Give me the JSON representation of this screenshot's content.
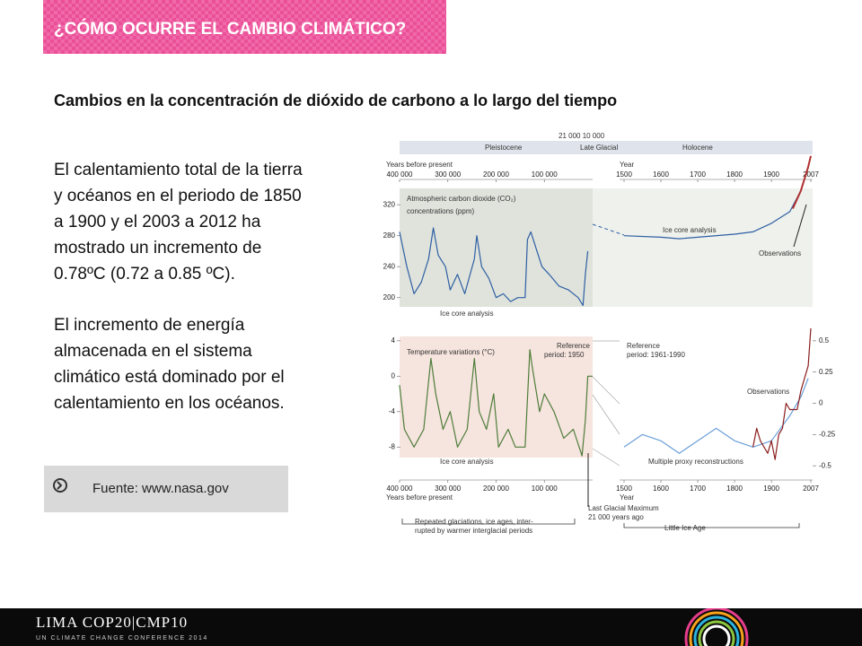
{
  "header": {
    "title": "¿CÓMO OCURRE EL CAMBIO CLIMÁTICO?"
  },
  "subtitle": "Cambios en la concentración de dióxido de carbono a lo largo del tiempo",
  "paragraphs": [
    [
      "El calentamiento total de la tierra",
      "y océanos en el periodo de 1850",
      "a 1900 y el 2003 a 2012 ha",
      "mostrado un incremento de",
      "0.78ºC (0.72 a 0.85 ºC)."
    ],
    [
      "El incremento de energía",
      "almacenada en el sistema",
      "climático está dominado por el",
      "calentamiento en los océanos."
    ]
  ],
  "source": "Fuente: www.nasa.gov",
  "footer": {
    "logo": "LIMA COP20|CMP10",
    "tagline": "UN CLIMATE CHANGE CONFERENCE 2014"
  },
  "figure": {
    "era_left": "Pleistocene",
    "era_mid": "Late Glacial",
    "era_right": "Holocene",
    "era_marks": "21 000   10 000",
    "left_axis_label": "Years before present",
    "right_axis_label": "Year",
    "left_xlim": [
      400000,
      0
    ],
    "right_xlim": [
      1500,
      2007
    ],
    "left_xticks": [
      {
        "value": 400000,
        "label": "400 000"
      },
      {
        "value": 300000,
        "label": "300 000"
      },
      {
        "value": 200000,
        "label": "200 000"
      },
      {
        "value": 100000,
        "label": "100 000"
      }
    ],
    "right_xticks": [
      1500,
      1600,
      1700,
      1800,
      1900,
      2007
    ],
    "co2": {
      "title": [
        "Atmospheric carbon dioxide (CO₂)",
        "concentrations (ppm)"
      ],
      "ylim": [
        180,
        390
      ],
      "yticks": [
        200,
        240,
        280,
        320
      ],
      "left_label": "Ice core analysis",
      "right_label": "Ice core analysis",
      "obs_label": "Observations",
      "series": [
        {
          "name": "Ice core analysis",
          "color": "#2e5fa3",
          "side": "left",
          "x": [
            400000,
            385000,
            370000,
            355000,
            340000,
            330000,
            320000,
            305000,
            295000,
            280000,
            265000,
            245000,
            240000,
            230000,
            215000,
            200000,
            185000,
            170000,
            155000,
            140000,
            135000,
            128000,
            118000,
            105000,
            90000,
            70000,
            50000,
            30000,
            20000,
            15000,
            10000
          ],
          "values": [
            285,
            240,
            205,
            220,
            250,
            290,
            255,
            240,
            210,
            230,
            205,
            250,
            280,
            240,
            225,
            200,
            205,
            195,
            200,
            200,
            275,
            285,
            265,
            240,
            230,
            215,
            210,
            200,
            190,
            230,
            260
          ]
        },
        {
          "name": "Ice core analysis",
          "color": "#2e5fa3",
          "side": "right",
          "x": [
            1500,
            1600,
            1650,
            1700,
            1800,
            1850,
            1900,
            1950,
            1980,
            2000
          ],
          "values": [
            280,
            278,
            276,
            278,
            282,
            285,
            296,
            311,
            338,
            368
          ]
        },
        {
          "name": "Observations",
          "color": "#b03030",
          "side": "right",
          "x": [
            1958,
            1980,
            2000,
            2007
          ],
          "values": [
            315,
            338,
            369,
            383
          ]
        }
      ]
    },
    "temp": {
      "title": "Temperature variations (°C)",
      "ref_left": [
        "Reference",
        "period: 1950"
      ],
      "ref_right": [
        "Reference",
        "period: 1961-1990"
      ],
      "left_ylim": [
        -10,
        5.5
      ],
      "left_yticks": [
        4,
        0,
        -4,
        -8
      ],
      "right_ylim": [
        -0.7,
        0.7
      ],
      "right_yticks": [
        0.5,
        0.25,
        0,
        -0.25,
        -0.5
      ],
      "left_label": "Ice core analysis",
      "proxy_label": "Multiple proxy reconstructions",
      "obs_label": "Observations",
      "series": [
        {
          "name": "Ice core analysis",
          "color": "#4e7d3a",
          "side": "left",
          "x": [
            400000,
            390000,
            370000,
            350000,
            335000,
            325000,
            310000,
            295000,
            280000,
            260000,
            245000,
            235000,
            220000,
            205000,
            195000,
            175000,
            160000,
            140000,
            130000,
            125000,
            110000,
            100000,
            80000,
            60000,
            40000,
            22000,
            15000,
            10000,
            0
          ],
          "values": [
            -1,
            -6,
            -8,
            -6,
            2,
            -2,
            -6,
            -4,
            -8,
            -6,
            2,
            -4,
            -6,
            -2,
            -8,
            -6,
            -8,
            -8,
            3,
            1,
            -4,
            -2,
            -4,
            -7,
            -6,
            -9,
            -5,
            0,
            0
          ]
        },
        {
          "name": "Multiple proxy reconstructions",
          "color": "#6a9fd8",
          "side": "right",
          "x": [
            1500,
            1550,
            1600,
            1650,
            1700,
            1750,
            1800,
            1850,
            1900,
            1950,
            1980,
            2000
          ],
          "values": [
            -0.35,
            -0.25,
            -0.3,
            -0.4,
            -0.3,
            -0.2,
            -0.3,
            -0.35,
            -0.3,
            -0.1,
            0.05,
            0.2
          ]
        },
        {
          "name": "Observations",
          "color": "#8b1e1e",
          "side": "right",
          "x": [
            1850,
            1860,
            1870,
            1880,
            1890,
            1900,
            1910,
            1920,
            1930,
            1940,
            1950,
            1960,
            1970,
            1980,
            1990,
            2000,
            2007
          ],
          "values": [
            -0.35,
            -0.2,
            -0.3,
            -0.35,
            -0.4,
            -0.3,
            -0.45,
            -0.25,
            -0.2,
            0,
            -0.05,
            -0.05,
            -0.05,
            0.1,
            0.2,
            0.3,
            0.6
          ]
        }
      ]
    },
    "lgm": [
      "Last Glacial Maximum",
      "21 000 years ago"
    ],
    "glaciations": [
      "Repeated glaciations, ice ages, inter-",
      "rupted by warmer interglacial periods"
    ],
    "little_ice_age": "Little Ice Age"
  }
}
